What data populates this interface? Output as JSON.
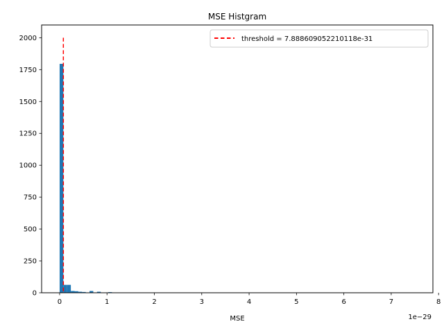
{
  "chart_data": {
    "type": "bar",
    "title": "MSE Histgram",
    "xlabel": "MSE",
    "ylabel": "",
    "x_offset_label": "1e−29",
    "xlim": [
      -0.38,
      7.88
    ],
    "ylim": [
      0,
      2100
    ],
    "x_ticks": [
      0,
      1,
      2,
      3,
      4,
      5,
      6,
      7,
      8
    ],
    "x_tick_labels": [
      "0",
      "1",
      "2",
      "3",
      "4",
      "5",
      "6",
      "7",
      "8"
    ],
    "y_ticks": [
      0,
      250,
      500,
      750,
      1000,
      1250,
      1500,
      1750,
      2000
    ],
    "y_tick_labels": [
      "0",
      "250",
      "500",
      "750",
      "1000",
      "1250",
      "1500",
      "1750",
      "2000"
    ],
    "bin_width": 0.0789,
    "bins": [
      {
        "x0": 0.0,
        "count": 1795
      },
      {
        "x0": 0.0789,
        "count": 62
      },
      {
        "x0": 0.1578,
        "count": 62
      },
      {
        "x0": 0.2367,
        "count": 14
      },
      {
        "x0": 0.3155,
        "count": 12
      },
      {
        "x0": 0.3944,
        "count": 8
      },
      {
        "x0": 0.4733,
        "count": 6
      },
      {
        "x0": 0.6311,
        "count": 14
      },
      {
        "x0": 0.7889,
        "count": 8
      },
      {
        "x0": 1.0256,
        "count": 5
      }
    ],
    "bar_color": "#1f77b4",
    "threshold": {
      "x": 0.0789,
      "y_top": 2000,
      "label": "threshold = 7.888609052210118e-31",
      "color": "#ff0000"
    },
    "legend_position": "top-right",
    "grid": false
  }
}
